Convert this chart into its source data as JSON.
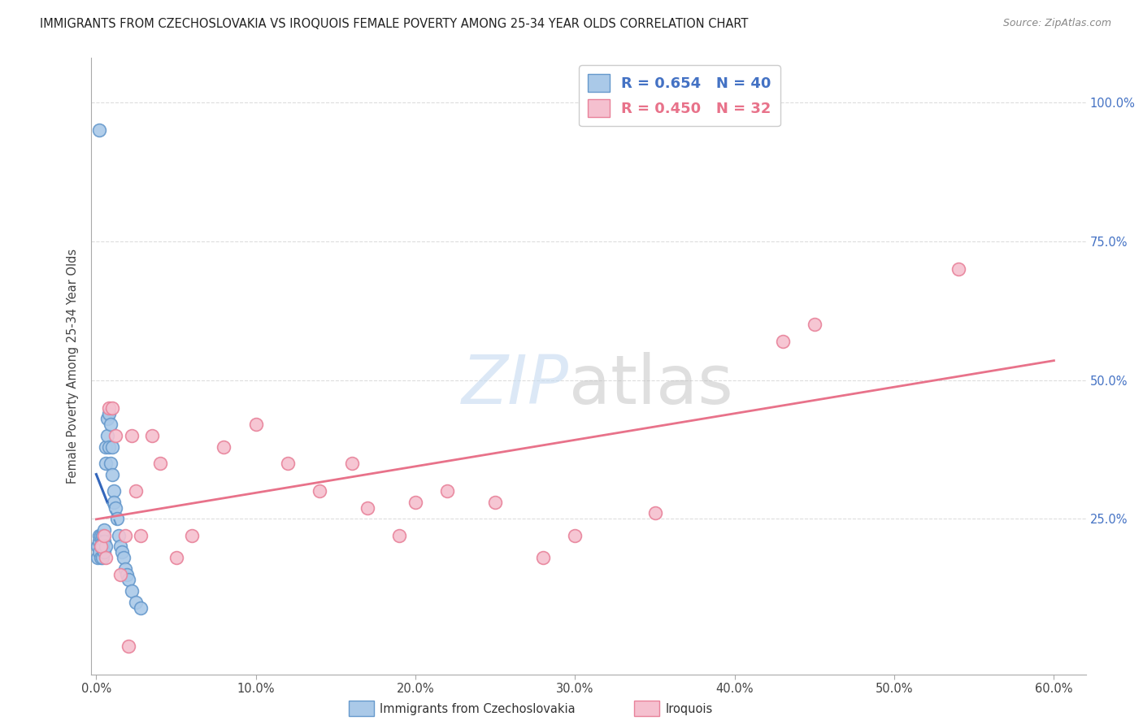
{
  "title": "IMMIGRANTS FROM CZECHOSLOVAKIA VS IROQUOIS FEMALE POVERTY AMONG 25-34 YEAR OLDS CORRELATION CHART",
  "source": "Source: ZipAtlas.com",
  "ylabel": "Female Poverty Among 25-34 Year Olds",
  "legend_blue_R": "0.654",
  "legend_blue_N": "40",
  "legend_pink_R": "0.450",
  "legend_pink_N": "32",
  "blue_color": "#aac9e8",
  "blue_edge_color": "#6699cc",
  "blue_line_color": "#3366bb",
  "blue_dash_color": "#6699cc",
  "pink_color": "#f5c0cf",
  "pink_edge_color": "#e8829a",
  "pink_line_color": "#e8728a",
  "watermark_zip_color": "#c5daf0",
  "watermark_atlas_color": "#c0c0c0",
  "background_color": "#ffffff",
  "grid_color": "#dddddd",
  "blue_scatter_x": [
    0.001,
    0.001,
    0.002,
    0.002,
    0.002,
    0.003,
    0.003,
    0.003,
    0.004,
    0.004,
    0.004,
    0.005,
    0.005,
    0.005,
    0.006,
    0.006,
    0.006,
    0.007,
    0.007,
    0.008,
    0.008,
    0.009,
    0.009,
    0.01,
    0.01,
    0.011,
    0.011,
    0.012,
    0.013,
    0.014,
    0.015,
    0.016,
    0.017,
    0.018,
    0.019,
    0.02,
    0.022,
    0.025,
    0.028,
    0.002
  ],
  "blue_scatter_y": [
    0.2,
    0.18,
    0.21,
    0.19,
    0.22,
    0.2,
    0.18,
    0.22,
    0.2,
    0.18,
    0.22,
    0.23,
    0.19,
    0.21,
    0.35,
    0.38,
    0.2,
    0.4,
    0.43,
    0.44,
    0.38,
    0.42,
    0.35,
    0.38,
    0.33,
    0.3,
    0.28,
    0.27,
    0.25,
    0.22,
    0.2,
    0.19,
    0.18,
    0.16,
    0.15,
    0.14,
    0.12,
    0.1,
    0.09,
    0.95
  ],
  "pink_scatter_x": [
    0.003,
    0.005,
    0.006,
    0.008,
    0.01,
    0.012,
    0.015,
    0.018,
    0.022,
    0.025,
    0.028,
    0.035,
    0.04,
    0.05,
    0.06,
    0.08,
    0.1,
    0.12,
    0.14,
    0.16,
    0.17,
    0.19,
    0.2,
    0.22,
    0.25,
    0.28,
    0.3,
    0.35,
    0.43,
    0.45,
    0.54,
    0.02
  ],
  "pink_scatter_y": [
    0.2,
    0.22,
    0.18,
    0.45,
    0.45,
    0.4,
    0.15,
    0.22,
    0.4,
    0.3,
    0.22,
    0.4,
    0.35,
    0.18,
    0.22,
    0.38,
    0.42,
    0.35,
    0.3,
    0.35,
    0.27,
    0.22,
    0.28,
    0.3,
    0.28,
    0.18,
    0.22,
    0.26,
    0.57,
    0.6,
    0.7,
    0.02
  ]
}
